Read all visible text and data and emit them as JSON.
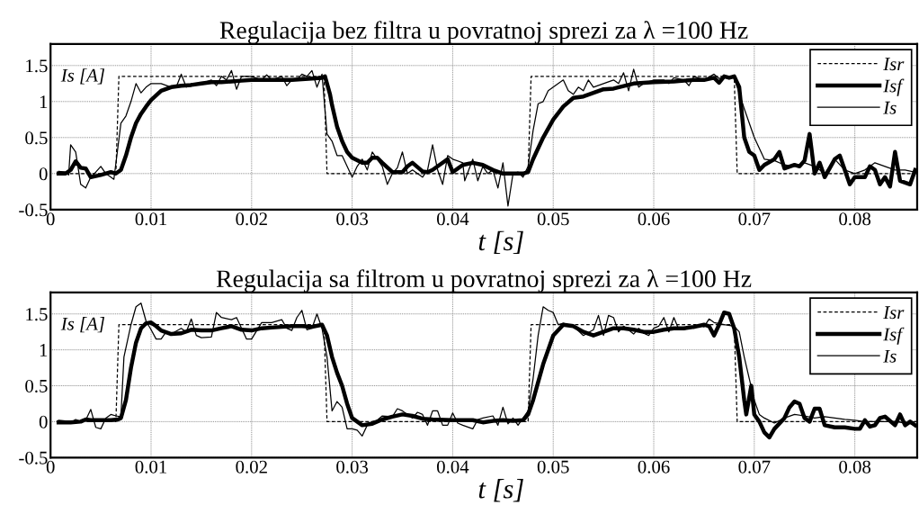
{
  "chart_data": [
    {
      "type": "line",
      "title": "Regulacija bez filtra u povratnoj sprezi za λ =100 Hz",
      "xlabel": "t [s]",
      "ylabel": "Is [A]",
      "xlim": [
        0,
        0.0862
      ],
      "ylim": [
        -0.5,
        1.8
      ],
      "xticks": [
        0,
        0.01,
        0.02,
        0.03,
        0.04,
        0.05,
        0.06,
        0.07,
        0.08
      ],
      "yticks": [
        -0.5,
        0,
        0.5,
        1,
        1.5
      ],
      "grid": true,
      "legend": "top right",
      "series": [
        {
          "name": "Isr",
          "color": "#000000",
          "line_style": "dashed",
          "x": [
            0.0008,
            0.0065,
            0.0068,
            0.0272,
            0.0275,
            0.0475,
            0.0478,
            0.068,
            0.0683,
            0.0862
          ],
          "values": [
            0,
            0,
            1.35,
            1.35,
            0,
            0,
            1.35,
            1.35,
            0,
            0
          ]
        },
        {
          "name": "Isf",
          "color": "#000000",
          "line_style": "solid",
          "x": [
            0.0008,
            0.0015,
            0.002,
            0.0025,
            0.003,
            0.0035,
            0.004,
            0.005,
            0.006,
            0.0065,
            0.007,
            0.0075,
            0.008,
            0.0085,
            0.009,
            0.0095,
            0.01,
            0.011,
            0.012,
            0.013,
            0.014,
            0.015,
            0.016,
            0.017,
            0.018,
            0.019,
            0.02,
            0.022,
            0.024,
            0.026,
            0.027,
            0.0273,
            0.0278,
            0.028,
            0.0285,
            0.029,
            0.0295,
            0.03,
            0.031,
            0.0315,
            0.032,
            0.0325,
            0.033,
            0.034,
            0.035,
            0.0355,
            0.036,
            0.037,
            0.0375,
            0.038,
            0.039,
            0.0395,
            0.04,
            0.041,
            0.042,
            0.043,
            0.044,
            0.045,
            0.046,
            0.047,
            0.0475,
            0.048,
            0.049,
            0.05,
            0.051,
            0.052,
            0.053,
            0.054,
            0.055,
            0.056,
            0.058,
            0.06,
            0.062,
            0.064,
            0.065,
            0.066,
            0.0665,
            0.067,
            0.0675,
            0.068,
            0.0685,
            0.069,
            0.0695,
            0.07,
            0.0705,
            0.071,
            0.072,
            0.0725,
            0.073,
            0.074,
            0.0745,
            0.075,
            0.0755,
            0.076,
            0.0765,
            0.077,
            0.078,
            0.0785,
            0.079,
            0.0795,
            0.08,
            0.081,
            0.0815,
            0.082,
            0.0825,
            0.083,
            0.0835,
            0.084,
            0.0845,
            0.0855,
            0.086
          ],
          "values": [
            0,
            0,
            0.05,
            0.17,
            0.08,
            0.07,
            -0.05,
            -0.02,
            0.02,
            0,
            0.05,
            0.25,
            0.5,
            0.7,
            0.83,
            0.93,
            1.02,
            1.15,
            1.2,
            1.22,
            1.23,
            1.25,
            1.27,
            1.27,
            1.28,
            1.29,
            1.3,
            1.3,
            1.3,
            1.32,
            1.33,
            1.35,
            1.1,
            0.95,
            0.65,
            0.45,
            0.3,
            0.22,
            0.15,
            0.15,
            0.22,
            0.22,
            0.15,
            0.02,
            0.02,
            0.1,
            0.15,
            0.03,
            0.02,
            0.05,
            0.15,
            0.2,
            0.02,
            0.12,
            0.15,
            0.12,
            0.05,
            0,
            0,
            0,
            0.02,
            0.2,
            0.5,
            0.75,
            0.93,
            1.05,
            1.07,
            1.12,
            1.17,
            1.18,
            1.25,
            1.27,
            1.28,
            1.3,
            1.3,
            1.33,
            1.26,
            1.35,
            1.33,
            1.35,
            1.2,
            0.5,
            0.3,
            0.25,
            0.05,
            0.12,
            0.2,
            0.3,
            0.07,
            0.12,
            0.1,
            0.18,
            0.55,
            0,
            0.15,
            -0.05,
            0.2,
            0.25,
            0.05,
            -0.15,
            -0.05,
            -0.05,
            0.1,
            0.05,
            -0.15,
            -0.05,
            -0.18,
            0.3,
            -0.1,
            -0.15,
            0.05
          ]
        },
        {
          "name": "Is",
          "color": "#000000",
          "line_style": "solid",
          "x": [
            0.0008,
            0.0015,
            0.0018,
            0.002,
            0.0025,
            0.003,
            0.0035,
            0.004,
            0.0045,
            0.005,
            0.0055,
            0.006,
            0.0063,
            0.007,
            0.0075,
            0.008,
            0.0085,
            0.009,
            0.0095,
            0.01,
            0.011,
            0.012,
            0.0125,
            0.013,
            0.0135,
            0.014,
            0.015,
            0.016,
            0.0165,
            0.017,
            0.0175,
            0.018,
            0.0185,
            0.019,
            0.02,
            0.021,
            0.0215,
            0.022,
            0.023,
            0.0235,
            0.024,
            0.0245,
            0.025,
            0.0255,
            0.026,
            0.0265,
            0.027,
            0.0275,
            0.028,
            0.0285,
            0.029,
            0.03,
            0.0305,
            0.031,
            0.0315,
            0.032,
            0.033,
            0.0335,
            0.034,
            0.0345,
            0.035,
            0.0355,
            0.036,
            0.037,
            0.0375,
            0.038,
            0.0385,
            0.039,
            0.0395,
            0.04,
            0.041,
            0.0412,
            0.042,
            0.0425,
            0.043,
            0.0435,
            0.044,
            0.0445,
            0.045,
            0.0455,
            0.046,
            0.0465,
            0.047,
            0.0475,
            0.048,
            0.0485,
            0.049,
            0.0495,
            0.05,
            0.0505,
            0.051,
            0.0515,
            0.052,
            0.0525,
            0.053,
            0.0535,
            0.054,
            0.055,
            0.056,
            0.0565,
            0.057,
            0.0575,
            0.058,
            0.0585,
            0.059,
            0.06,
            0.061,
            0.0615,
            0.062,
            0.063,
            0.0635,
            0.064,
            0.065,
            0.066,
            0.0665,
            0.067,
            0.068,
            0.069,
            0.07,
            0.071,
            0.072,
            0.073,
            0.074,
            0.075,
            0.076,
            0.077,
            0.078,
            0.079,
            0.08,
            0.081,
            0.082,
            0.083,
            0.084,
            0.085,
            0.086
          ],
          "values": [
            0.03,
            0.02,
            -0.02,
            0.4,
            0.3,
            -0.15,
            -0.2,
            -0.05,
            0.02,
            0.1,
            0,
            -0.05,
            -0.08,
            0.7,
            0.8,
            1.0,
            1.25,
            1.12,
            1.2,
            1.25,
            1.25,
            1.2,
            1.2,
            1.38,
            1.2,
            1.25,
            1.25,
            1.3,
            1.22,
            1.35,
            1.3,
            1.43,
            1.17,
            1.35,
            1.35,
            1.3,
            1.37,
            1.3,
            1.35,
            1.22,
            1.3,
            1.3,
            1.38,
            1.35,
            1.43,
            1.2,
            1.38,
            0.55,
            0.45,
            0.25,
            0.25,
            -0.05,
            0.1,
            0.2,
            0.05,
            0.3,
            0.1,
            -0.15,
            0,
            0.08,
            0.3,
            0,
            0.05,
            -0.05,
            0.05,
            0.4,
            0.05,
            -0.15,
            0.25,
            0.2,
            0.15,
            -0.1,
            0.2,
            -0.1,
            0.1,
            0,
            0.05,
            -0.2,
            0.15,
            -0.45,
            0,
            0.02,
            -0.05,
            0.1,
            0.6,
            0.97,
            1.0,
            1.15,
            1.2,
            1.25,
            1.3,
            1.15,
            1.1,
            1.2,
            1.15,
            1.3,
            1.2,
            1.25,
            1.3,
            1.25,
            1.4,
            1.15,
            1.45,
            1.2,
            1.25,
            1.3,
            1.3,
            1.25,
            1.33,
            1.3,
            1.22,
            1.35,
            1.3,
            1.38,
            1.32,
            1.35,
            1.33,
            0.9,
            0.5,
            0.2,
            0.18,
            0.12,
            0.1,
            0.15,
            0.1,
            0,
            0.2,
            0.05,
            0,
            0.05,
            0.15,
            0.1,
            0.05,
            0.05,
            0.02
          ]
        }
      ]
    },
    {
      "type": "line",
      "title": "Regulacija sa filtrom u povratnoj sprezi za λ =100 Hz",
      "xlabel": "t [s]",
      "ylabel": "Is [A]",
      "xlim": [
        0,
        0.0862
      ],
      "ylim": [
        -0.5,
        1.8
      ],
      "xticks": [
        0,
        0.01,
        0.02,
        0.03,
        0.04,
        0.05,
        0.06,
        0.07,
        0.08
      ],
      "yticks": [
        -0.5,
        0,
        0.5,
        1,
        1.5
      ],
      "grid": true,
      "legend": "top right",
      "series": [
        {
          "name": "Isr",
          "color": "#000000",
          "line_style": "dashed",
          "x": [
            0.0008,
            0.0065,
            0.0068,
            0.0272,
            0.0275,
            0.0475,
            0.0478,
            0.068,
            0.0683,
            0.0862
          ],
          "values": [
            0,
            0,
            1.35,
            1.35,
            0,
            0,
            1.35,
            1.35,
            0,
            0
          ]
        },
        {
          "name": "Isf",
          "color": "#000000",
          "line_style": "solid",
          "x": [
            0.0008,
            0.002,
            0.003,
            0.0035,
            0.004,
            0.005,
            0.006,
            0.0067,
            0.007,
            0.0075,
            0.008,
            0.0085,
            0.009,
            0.0095,
            0.01,
            0.0105,
            0.011,
            0.012,
            0.013,
            0.014,
            0.015,
            0.016,
            0.017,
            0.018,
            0.019,
            0.02,
            0.021,
            0.022,
            0.023,
            0.024,
            0.025,
            0.026,
            0.027,
            0.0275,
            0.028,
            0.0285,
            0.029,
            0.0295,
            0.03,
            0.031,
            0.032,
            0.033,
            0.034,
            0.035,
            0.036,
            0.037,
            0.038,
            0.04,
            0.042,
            0.043,
            0.044,
            0.045,
            0.046,
            0.047,
            0.0475,
            0.048,
            0.049,
            0.05,
            0.051,
            0.052,
            0.053,
            0.054,
            0.055,
            0.056,
            0.057,
            0.058,
            0.059,
            0.06,
            0.061,
            0.062,
            0.063,
            0.064,
            0.065,
            0.0655,
            0.066,
            0.0665,
            0.067,
            0.0675,
            0.068,
            0.0685,
            0.069,
            0.0692,
            0.0697,
            0.07,
            0.0705,
            0.071,
            0.0715,
            0.072,
            0.073,
            0.0735,
            0.074,
            0.0745,
            0.075,
            0.0755,
            0.076,
            0.0765,
            0.077,
            0.078,
            0.079,
            0.08,
            0.0805,
            0.081,
            0.0815,
            0.082,
            0.0825,
            0.083,
            0.084,
            0.0845,
            0.085,
            0.0855,
            0.086
          ],
          "values": [
            -0.01,
            -0.01,
            0,
            0.03,
            0.02,
            0.02,
            0.02,
            0.03,
            0.05,
            0.3,
            0.75,
            1.1,
            1.3,
            1.37,
            1.38,
            1.33,
            1.27,
            1.22,
            1.23,
            1.28,
            1.27,
            1.27,
            1.3,
            1.33,
            1.28,
            1.27,
            1.3,
            1.31,
            1.32,
            1.33,
            1.33,
            1.32,
            1.35,
            1.2,
            0.9,
            0.68,
            0.5,
            0.25,
            0.05,
            -0.05,
            -0.03,
            0.03,
            0.07,
            0.1,
            0.08,
            0.04,
            0.03,
            0.02,
            0.02,
            -0.01,
            0.01,
            0.02,
            0.01,
            0.02,
            0.1,
            0.3,
            0.8,
            1.2,
            1.35,
            1.33,
            1.25,
            1.2,
            1.25,
            1.3,
            1.3,
            1.28,
            1.25,
            1.25,
            1.28,
            1.3,
            1.3,
            1.32,
            1.35,
            1.33,
            1.2,
            1.35,
            1.52,
            1.5,
            1.3,
            0.9,
            0.3,
            0.1,
            0.5,
            0.1,
            0,
            -0.15,
            -0.22,
            -0.1,
            0.05,
            0.2,
            0.28,
            0.25,
            0.05,
            0,
            0.18,
            0.18,
            -0.05,
            -0.08,
            -0.08,
            -0.1,
            -0.1,
            0.02,
            -0.07,
            -0.05,
            0.05,
            0.07,
            -0.05,
            0.1,
            -0.05,
            0,
            -0.05
          ]
        },
        {
          "name": "Is",
          "color": "#000000",
          "line_style": "solid",
          "x": [
            0.0008,
            0.0015,
            0.002,
            0.0025,
            0.003,
            0.0035,
            0.004,
            0.0045,
            0.005,
            0.0055,
            0.006,
            0.0065,
            0.007,
            0.0073,
            0.008,
            0.0085,
            0.009,
            0.0095,
            0.01,
            0.0105,
            0.011,
            0.0115,
            0.012,
            0.013,
            0.0135,
            0.014,
            0.0145,
            0.015,
            0.016,
            0.0165,
            0.017,
            0.018,
            0.0185,
            0.019,
            0.0195,
            0.02,
            0.021,
            0.022,
            0.023,
            0.0235,
            0.024,
            0.0245,
            0.025,
            0.0255,
            0.026,
            0.0265,
            0.027,
            0.0275,
            0.028,
            0.0285,
            0.029,
            0.0295,
            0.03,
            0.0305,
            0.031,
            0.0315,
            0.032,
            0.0325,
            0.033,
            0.034,
            0.0345,
            0.035,
            0.036,
            0.0365,
            0.037,
            0.0375,
            0.038,
            0.0385,
            0.039,
            0.0395,
            0.04,
            0.0405,
            0.041,
            0.042,
            0.0425,
            0.043,
            0.044,
            0.0445,
            0.045,
            0.0455,
            0.046,
            0.0465,
            0.047,
            0.0475,
            0.048,
            0.0485,
            0.049,
            0.0495,
            0.05,
            0.0505,
            0.051,
            0.052,
            0.053,
            0.054,
            0.0545,
            0.055,
            0.0555,
            0.056,
            0.0565,
            0.057,
            0.058,
            0.0585,
            0.059,
            0.0595,
            0.06,
            0.0605,
            0.061,
            0.0615,
            0.062,
            0.0625,
            0.063,
            0.0635,
            0.064,
            0.0645,
            0.065,
            0.0655,
            0.066,
            0.067,
            0.068,
            0.0685,
            0.069,
            0.0695,
            0.07,
            0.0705,
            0.071,
            0.072,
            0.073,
            0.074,
            0.075,
            0.076,
            0.077,
            0.078,
            0.079,
            0.08,
            0.081,
            0.082,
            0.083,
            0.084,
            0.085,
            0.086
          ],
          "values": [
            0.02,
            0.01,
            -0.01,
            0.03,
            0,
            0.02,
            0.17,
            -0.08,
            -0.1,
            0.05,
            0.1,
            0.08,
            0.07,
            0.9,
            1.35,
            1.6,
            1.65,
            1.4,
            1.28,
            1.15,
            1.15,
            1.25,
            1.22,
            1.3,
            1.25,
            1.43,
            1.2,
            1.17,
            1.18,
            1.52,
            1.45,
            1.42,
            1.45,
            1.3,
            1.15,
            1.15,
            1.38,
            1.38,
            1.42,
            1.3,
            1.27,
            1.45,
            1.55,
            1.28,
            1.3,
            1.5,
            1.3,
            0.9,
            0.15,
            0.28,
            0.2,
            -0.1,
            -0.1,
            -0.12,
            -0.2,
            -0.05,
            0,
            0.02,
            0.08,
            0.07,
            0.18,
            0.15,
            0.05,
            0.13,
            0.1,
            -0.05,
            0.15,
            0.15,
            -0.05,
            -0.05,
            0.12,
            -0.02,
            -0.05,
            -0.1,
            0.03,
            0.05,
            0.08,
            -0.05,
            0.2,
            -0.03,
            0.05,
            -0.05,
            0.05,
            0.15,
            0.6,
            1.2,
            1.6,
            1.55,
            1.52,
            1.35,
            1.37,
            1.33,
            1.2,
            1.28,
            1.48,
            1.2,
            1.48,
            1.45,
            1.25,
            1.33,
            1.22,
            1.3,
            1.23,
            1.2,
            1.3,
            1.33,
            1.45,
            1.25,
            1.45,
            1.28,
            1.3,
            1.33,
            1.3,
            1.35,
            1.32,
            1.43,
            1.38,
            1.35,
            1.33,
            1.25,
            0.9,
            0.6,
            0.3,
            0.1,
            0.05,
            -0.02,
            0.05,
            0.1,
            0.08,
            0.05,
            0.07,
            0.05,
            0.03,
            0.02,
            0,
            0,
            0,
            0,
            -0.02,
            0
          ]
        }
      ]
    }
  ]
}
